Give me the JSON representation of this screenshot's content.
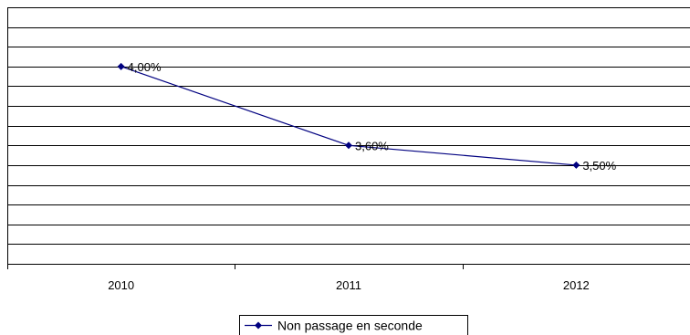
{
  "chart_data": {
    "type": "line",
    "categories": [
      "2010",
      "2011",
      "2012"
    ],
    "series": [
      {
        "name": "Non passage en seconde",
        "values": [
          4.0,
          3.6,
          3.5
        ],
        "labels": [
          "4,00%",
          "3,60%",
          "3,50%"
        ],
        "color": "#000080"
      }
    ],
    "ylim": [
      3.0,
      4.3
    ],
    "grid": true,
    "legend": "bottom-center",
    "title": "",
    "xlabel": "",
    "ylabel": ""
  }
}
